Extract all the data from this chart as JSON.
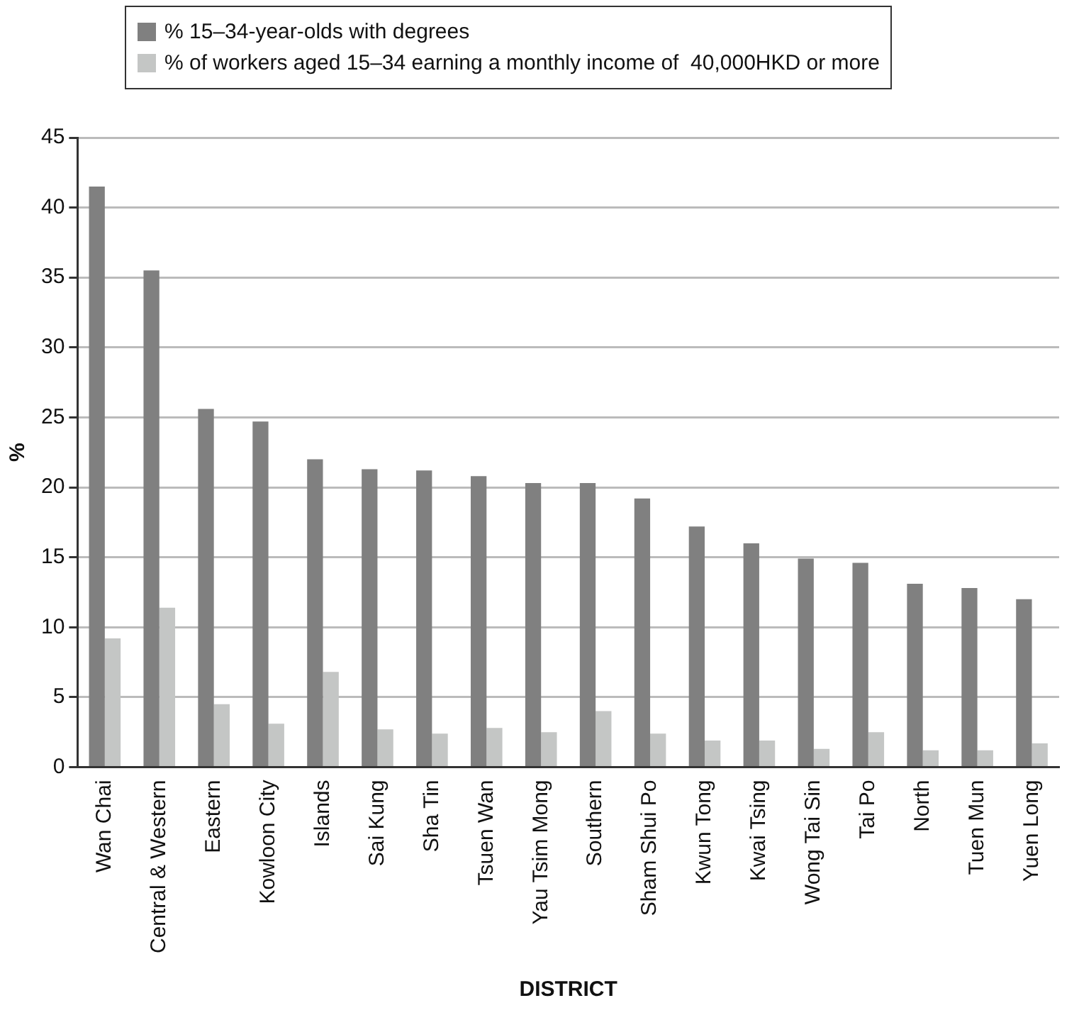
{
  "chart_data": {
    "type": "bar",
    "xlabel": "DISTRICT",
    "ylabel": "%",
    "categories": [
      "Wan Chai",
      "Central & Western",
      "Eastern",
      "Kowloon City",
      "Islands",
      "Sai Kung",
      "Sha Tin",
      "Tsuen Wan",
      "Yau Tsim Mong",
      "Southern",
      "Sham Shui Po",
      "Kwun Tong",
      "Kwai Tsing",
      "Wong Tai Sin",
      "Tai Po",
      "North",
      "Tuen Mun",
      "Yuen Long"
    ],
    "series": [
      {
        "name": "% 15–34-year-olds with degrees",
        "color": "#808080",
        "values": [
          41.5,
          35.5,
          25.6,
          24.7,
          22.0,
          21.3,
          21.2,
          20.8,
          20.3,
          20.3,
          19.2,
          17.2,
          16.0,
          14.9,
          14.6,
          13.1,
          12.8,
          12.0
        ]
      },
      {
        "name": "% of workers aged 15–34 earning a monthly income of  40,000HKD or more",
        "color": "#c4c6c5",
        "values": [
          9.2,
          11.4,
          4.5,
          3.1,
          6.8,
          2.7,
          2.4,
          2.8,
          2.5,
          4.0,
          2.4,
          1.9,
          1.9,
          1.3,
          2.5,
          1.2,
          1.2,
          1.7
        ]
      }
    ],
    "ylim": [
      0,
      45
    ],
    "yticks": [
      0,
      5,
      10,
      15,
      20,
      25,
      30,
      35,
      40,
      45
    ],
    "grid": "y",
    "legend": "top"
  }
}
